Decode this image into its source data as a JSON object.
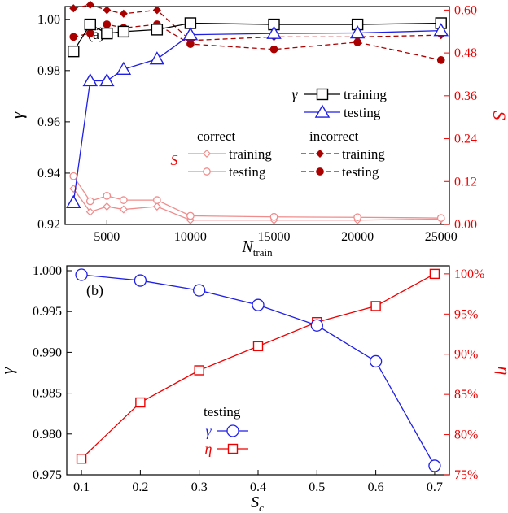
{
  "colors": {
    "black": "#000000",
    "blue": "#1f1fe6",
    "red": "#ee0000",
    "pink": "#f08c8c",
    "darkred": "#aa0000"
  },
  "chart_data": [
    {
      "panel": "(a)",
      "type": "line",
      "xlabel_main": "N",
      "xlabel_sub": "train",
      "ylabel": "γ",
      "ylabel_right": "S",
      "xlim": [
        2500,
        25500
      ],
      "ylim": [
        0.92,
        1.005
      ],
      "ylim_right": [
        0.0,
        0.61
      ],
      "xticks": [
        5000,
        10000,
        15000,
        20000,
        25000
      ],
      "yticks": [
        "0.92",
        "0.94",
        "0.96",
        "0.98",
        "1.00"
      ],
      "yticks_right": [
        "0.00",
        "0.12",
        "0.24",
        "0.36",
        "0.48",
        "0.60"
      ],
      "grid": false,
      "series": [
        {
          "name": "training",
          "group": "γ",
          "axis": "left",
          "color": "#000000",
          "marker": "square",
          "dash": false,
          "x": [
            3000,
            4000,
            5000,
            6000,
            8000,
            10000,
            15000,
            20000,
            25000
          ],
          "y": [
            0.9875,
            0.998,
            0.9945,
            0.9952,
            0.996,
            0.9985,
            0.998,
            0.998,
            0.9985
          ]
        },
        {
          "name": "testing",
          "group": "γ",
          "axis": "left",
          "color": "#1f1fe6",
          "marker": "triangle",
          "dash": false,
          "x": [
            3000,
            4000,
            5000,
            6000,
            8000,
            10000,
            15000,
            20000,
            25000
          ],
          "y": [
            0.9285,
            0.976,
            0.976,
            0.9805,
            0.9845,
            0.994,
            0.9945,
            0.9947,
            0.9956
          ]
        },
        {
          "name": "training",
          "group": "correct",
          "axis": "right",
          "color": "#f08c8c",
          "marker": "diamond-open",
          "dash": false,
          "x": [
            3000,
            4000,
            5000,
            6000,
            8000,
            10000,
            15000,
            20000,
            25000
          ],
          "y": [
            0.1,
            0.035,
            0.05,
            0.042,
            0.05,
            0.012,
            0.012,
            0.012,
            0.015
          ]
        },
        {
          "name": "testing",
          "group": "correct",
          "axis": "right",
          "color": "#f08c8c",
          "marker": "circle-open",
          "dash": false,
          "x": [
            3000,
            4000,
            5000,
            6000,
            8000,
            10000,
            15000,
            20000,
            25000
          ],
          "y": [
            0.135,
            0.065,
            0.08,
            0.068,
            0.068,
            0.024,
            0.021,
            0.02,
            0.018
          ]
        },
        {
          "name": "training",
          "group": "incorrect",
          "axis": "right",
          "color": "#aa0000",
          "marker": "diamond-filled",
          "dash": true,
          "x": [
            3000,
            4000,
            5000,
            6000,
            8000,
            10000,
            15000,
            20000,
            25000
          ],
          "y": [
            0.605,
            0.615,
            0.6,
            0.59,
            0.6,
            0.515,
            0.525,
            0.525,
            0.53
          ]
        },
        {
          "name": "testing",
          "group": "incorrect",
          "axis": "right",
          "color": "#aa0000",
          "marker": "circle-filled",
          "dash": true,
          "x": [
            3000,
            4000,
            5000,
            6000,
            8000,
            10000,
            15000,
            20000,
            25000
          ],
          "y": [
            0.525,
            0.535,
            0.56,
            0.55,
            0.56,
            0.505,
            0.49,
            0.51,
            0.46
          ]
        }
      ],
      "legend_gamma": {
        "label": "γ",
        "items": [
          "training",
          "testing"
        ]
      },
      "legend_s": {
        "label": "S",
        "headers": [
          "correct",
          "incorrect"
        ],
        "items": [
          "training",
          "testing"
        ]
      }
    },
    {
      "panel": "(b)",
      "type": "line",
      "xlabel_main": "S",
      "xlabel_sub": "c",
      "ylabel": "γ",
      "ylabel_right": "η",
      "xlim": [
        0.075,
        0.725
      ],
      "ylim": [
        0.975,
        1.0
      ],
      "ylim_right": [
        75,
        101
      ],
      "xticks": [
        "0.1",
        "0.2",
        "0.3",
        "0.4",
        "0.5",
        "0.6",
        "0.7"
      ],
      "yticks": [
        "0.975",
        "0.980",
        "0.985",
        "0.990",
        "0.995",
        "1.000"
      ],
      "yticks_right": [
        "75%",
        "80%",
        "85%",
        "90%",
        "95%",
        "100%"
      ],
      "grid": false,
      "series": [
        {
          "name": "γ",
          "axis": "left",
          "color": "#1f1fe6",
          "marker": "circle-open",
          "x": [
            0.1,
            0.2,
            0.3,
            0.4,
            0.5,
            0.6,
            0.7
          ],
          "y": [
            0.9995,
            0.9988,
            0.9976,
            0.9958,
            0.9933,
            0.9889,
            0.9761
          ]
        },
        {
          "name": "η",
          "axis": "right",
          "color": "#ee0000",
          "marker": "square-open",
          "x": [
            0.1,
            0.2,
            0.3,
            0.4,
            0.5,
            0.6,
            0.7
          ],
          "y": [
            77,
            84,
            88,
            91,
            94,
            96,
            100
          ]
        }
      ],
      "legend": {
        "title": "testing",
        "items": [
          "γ",
          "η"
        ]
      }
    }
  ]
}
